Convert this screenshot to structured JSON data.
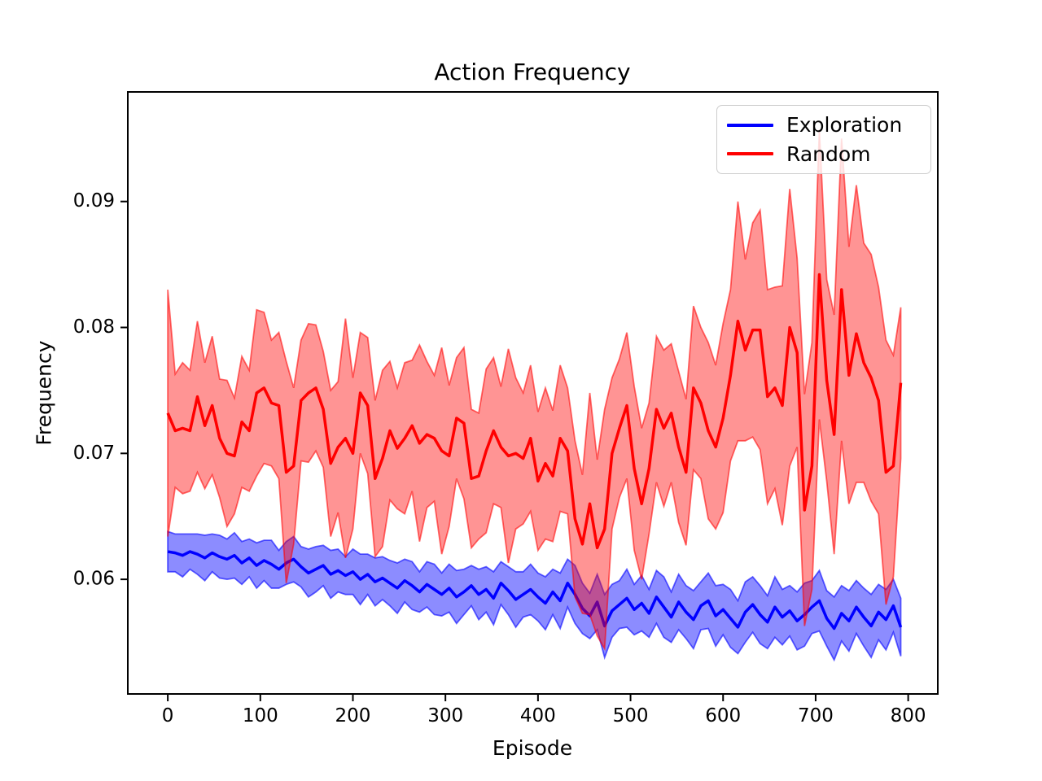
{
  "title": "Action Frequency",
  "xlabel": "Episode",
  "ylabel": "Frequency",
  "legend": {
    "entries": [
      {
        "label": "Exploration",
        "color": "#0000ff"
      },
      {
        "label": "Random",
        "color": "#ff0000"
      }
    ]
  },
  "chart_data": {
    "type": "line",
    "title": "Action Frequency",
    "xlabel": "Episode",
    "ylabel": "Frequency",
    "grid": false,
    "legend_position": "upper right",
    "xlim": [
      -43.2,
      832
    ],
    "ylim": [
      0.0509,
      0.0987
    ],
    "xticks": [
      0,
      100,
      200,
      300,
      400,
      500,
      600,
      700,
      800
    ],
    "xtick_labels": [
      "0",
      "100",
      "200",
      "300",
      "400",
      "500",
      "600",
      "700",
      "800"
    ],
    "yticks": [
      0.06,
      0.07,
      0.08,
      0.09
    ],
    "ytick_labels": [
      "0.06",
      "0.07",
      "0.08",
      "0.09"
    ],
    "x": {
      "start": 0,
      "step": 8,
      "count": 100
    },
    "value_scale": 0.0001,
    "axis_color": "#000000",
    "background": "#ffffff",
    "series": [
      {
        "name": "Exploration",
        "line_color": "#0000ff",
        "band_alpha": 0.45,
        "line_width": 3.5,
        "mean": [
          622,
          621,
          619,
          622,
          620,
          617,
          621,
          618,
          616,
          619,
          613,
          617,
          611,
          615,
          612,
          608,
          613,
          616,
          610,
          605,
          608,
          611,
          604,
          607,
          603,
          606,
          600,
          604,
          598,
          601,
          597,
          593,
          599,
          595,
          590,
          596,
          592,
          588,
          593,
          586,
          590,
          595,
          588,
          592,
          585,
          597,
          591,
          584,
          588,
          592,
          586,
          581,
          590,
          583,
          597,
          588,
          577,
          571,
          582,
          563,
          575,
          580,
          585,
          576,
          581,
          573,
          586,
          578,
          570,
          582,
          574,
          568,
          579,
          583,
          571,
          576,
          569,
          562,
          574,
          580,
          572,
          566,
          578,
          570,
          575,
          567,
          572,
          578,
          583,
          569,
          561,
          573,
          567,
          578,
          570,
          563,
          574,
          568,
          579,
          562
        ],
        "band_halfwidth": [
          16,
          15,
          17,
          14,
          16,
          18,
          15,
          17,
          16,
          18,
          17,
          15,
          18,
          16,
          19,
          15,
          17,
          18,
          16,
          19,
          18,
          16,
          19,
          17,
          15,
          18,
          20,
          16,
          19,
          17,
          18,
          20,
          17,
          19,
          16,
          18,
          20,
          17,
          19,
          21,
          18,
          16,
          20,
          18,
          21,
          17,
          19,
          22,
          18,
          20,
          19,
          21,
          18,
          22,
          19,
          23,
          20,
          18,
          22,
          25,
          21,
          19,
          23,
          20,
          22,
          19,
          21,
          24,
          20,
          22,
          21,
          23,
          19,
          22,
          24,
          20,
          23,
          21,
          24,
          22,
          23,
          21,
          24,
          22,
          20,
          23,
          25,
          21,
          24,
          22,
          25,
          22,
          24,
          21,
          23,
          25,
          22,
          24,
          21,
          23
        ]
      },
      {
        "name": "Random",
        "line_color": "#ff0000",
        "band_alpha": 0.42,
        "line_width": 3.5,
        "mean": [
          732,
          718,
          720,
          718,
          745,
          722,
          738,
          712,
          700,
          698,
          725,
          718,
          748,
          752,
          740,
          738,
          685,
          690,
          742,
          748,
          752,
          735,
          692,
          705,
          712,
          700,
          748,
          738,
          680,
          696,
          718,
          704,
          712,
          722,
          708,
          715,
          712,
          702,
          698,
          728,
          724,
          680,
          682,
          702,
          718,
          705,
          698,
          700,
          696,
          712,
          678,
          692,
          682,
          712,
          702,
          648,
          628,
          660,
          625,
          640,
          700,
          720,
          738,
          688,
          660,
          688,
          735,
          720,
          732,
          705,
          685,
          752,
          740,
          718,
          705,
          728,
          762,
          805,
          782,
          798,
          798,
          745,
          752,
          738,
          800,
          780,
          655,
          690,
          842,
          758,
          715,
          830,
          762,
          795,
          772,
          760,
          742,
          685,
          690,
          756
        ],
        "band_halfwidth": [
          98,
          45,
          52,
          48,
          60,
          50,
          55,
          47,
          58,
          46,
          52,
          48,
          66,
          60,
          50,
          58,
          88,
          62,
          48,
          55,
          50,
          46,
          58,
          52,
          95,
          60,
          48,
          54,
          62,
          70,
          55,
          48,
          60,
          52,
          78,
          58,
          50,
          82,
          56,
          48,
          60,
          55,
          50,
          65,
          58,
          48,
          85,
          60,
          52,
          58,
          55,
          60,
          52,
          58,
          50,
          62,
          55,
          88,
          70,
          95,
          60,
          55,
          58,
          65,
          60,
          52,
          58,
          62,
          55,
          60,
          58,
          65,
          60,
          70,
          65,
          75,
          68,
          95,
          72,
          85,
          95,
          85,
          80,
          95,
          110,
          75,
          92,
          98,
          115,
          80,
          95,
          120,
          102,
          118,
          95,
          98,
          90,
          105,
          88,
          60
        ]
      }
    ]
  }
}
